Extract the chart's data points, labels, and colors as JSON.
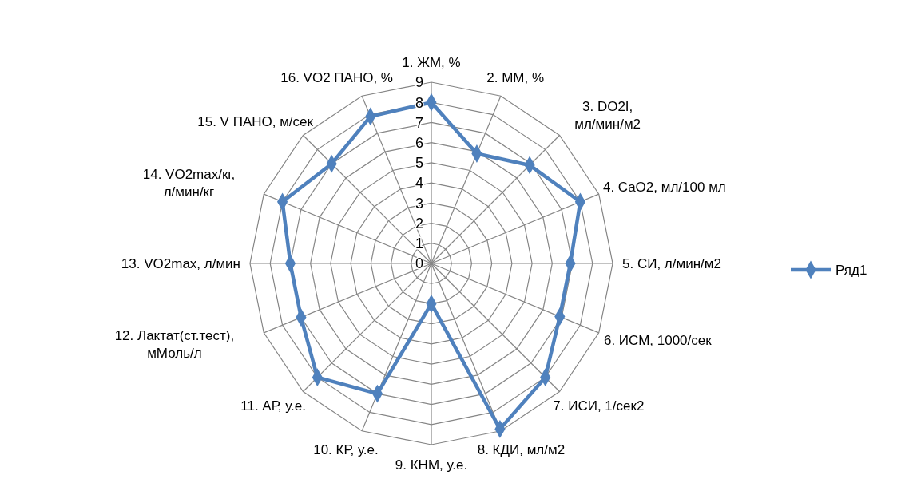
{
  "chart_data": {
    "type": "radar",
    "categories": [
      "1. ЖМ, %",
      "2. ММ, %",
      "3. DO2I,\nмл/мин/м2",
      "4. CaO2, мл/100 мл",
      "5. СИ, л/мин/м2",
      "6. ИСМ, 1000/сек",
      "7. ИСИ, 1/сек2",
      "8. КДИ, мл/м2",
      "9. КНМ, у.е.",
      "10. КР, у.е.",
      "11. АР, у.е.",
      "12. Лактат(ст.тест),\nмМоль/л",
      "13. VO2max, л/мин",
      "14. VO2max/кг,\nл/мин/кг",
      "15. V ПАНО, м/сек",
      "16. VO2 ПАНО, %"
    ],
    "series": [
      {
        "name": "Ряд1",
        "color": "#4f81bd",
        "values": [
          8.0,
          5.9,
          6.9,
          8.0,
          6.9,
          6.9,
          8.0,
          8.9,
          2.0,
          7.0,
          8.0,
          7.0,
          7.0,
          8.0,
          7.0,
          7.9
        ]
      }
    ],
    "ylim": [
      0,
      9
    ],
    "yticks": [
      0,
      1,
      2,
      3,
      4,
      5,
      6,
      7,
      8,
      9
    ],
    "grid": true,
    "legend": "right",
    "marker": "diamond"
  }
}
